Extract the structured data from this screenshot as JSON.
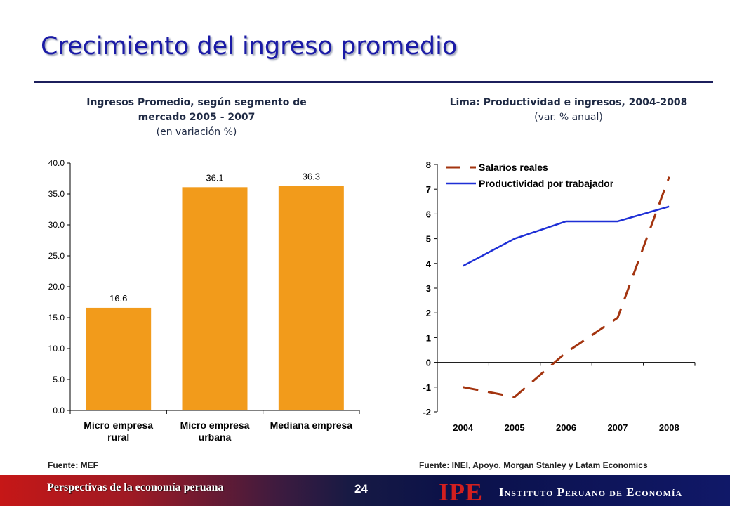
{
  "slide": {
    "title": "Crecimiento del ingreso promedio"
  },
  "left_chart": {
    "title_line1": "Ingresos Promedio, según segmento de",
    "title_line2": "mercado 2005 - 2007",
    "subtitle": "(en variación %)",
    "source": "Fuente: MEF"
  },
  "right_chart": {
    "title": "Lima: Productividad e ingresos, 2004-2008",
    "subtitle": "(var. % anual)",
    "source": "Fuente: INEI, Apoyo, Morgan Stanley y Latam Economics"
  },
  "footer": {
    "text": "Perspectivas de la economía peruana",
    "page_number": "24",
    "logo": "IPE",
    "institute": "Instituto Peruano de Economía"
  },
  "colors": {
    "bar": "#F29B1B",
    "salarios_line": "#A3340F",
    "productividad_line": "#1E2FD6"
  },
  "chart_data": [
    {
      "type": "bar",
      "categories": [
        [
          "Micro empresa",
          "rural"
        ],
        [
          "Micro empresa",
          "urbana"
        ],
        [
          "Mediana empresa"
        ]
      ],
      "values": [
        16.6,
        36.1,
        36.3
      ],
      "data_labels": [
        "16.6",
        "36.1",
        "36.3"
      ],
      "ylim": [
        0,
        40
      ],
      "yticks": [
        "0.0",
        "5.0",
        "10.0",
        "15.0",
        "20.0",
        "25.0",
        "30.0",
        "35.0",
        "40.0"
      ],
      "grid": false
    },
    {
      "type": "line",
      "x": [
        "2004",
        "2005",
        "2006",
        "2007",
        "2008"
      ],
      "ylim": [
        -2,
        8
      ],
      "yticks": [
        "-2",
        "-1",
        "0",
        "1",
        "2",
        "3",
        "4",
        "5",
        "6",
        "7",
        "8"
      ],
      "legend_position": "top-left",
      "series": [
        {
          "name": "Salarios reales",
          "values": [
            -1.0,
            -1.4,
            0.4,
            1.8,
            7.5
          ],
          "style": "dashed"
        },
        {
          "name": "Productividad por trabajador",
          "values": [
            3.9,
            5.0,
            5.7,
            5.7,
            6.3
          ],
          "style": "solid"
        }
      ]
    }
  ]
}
